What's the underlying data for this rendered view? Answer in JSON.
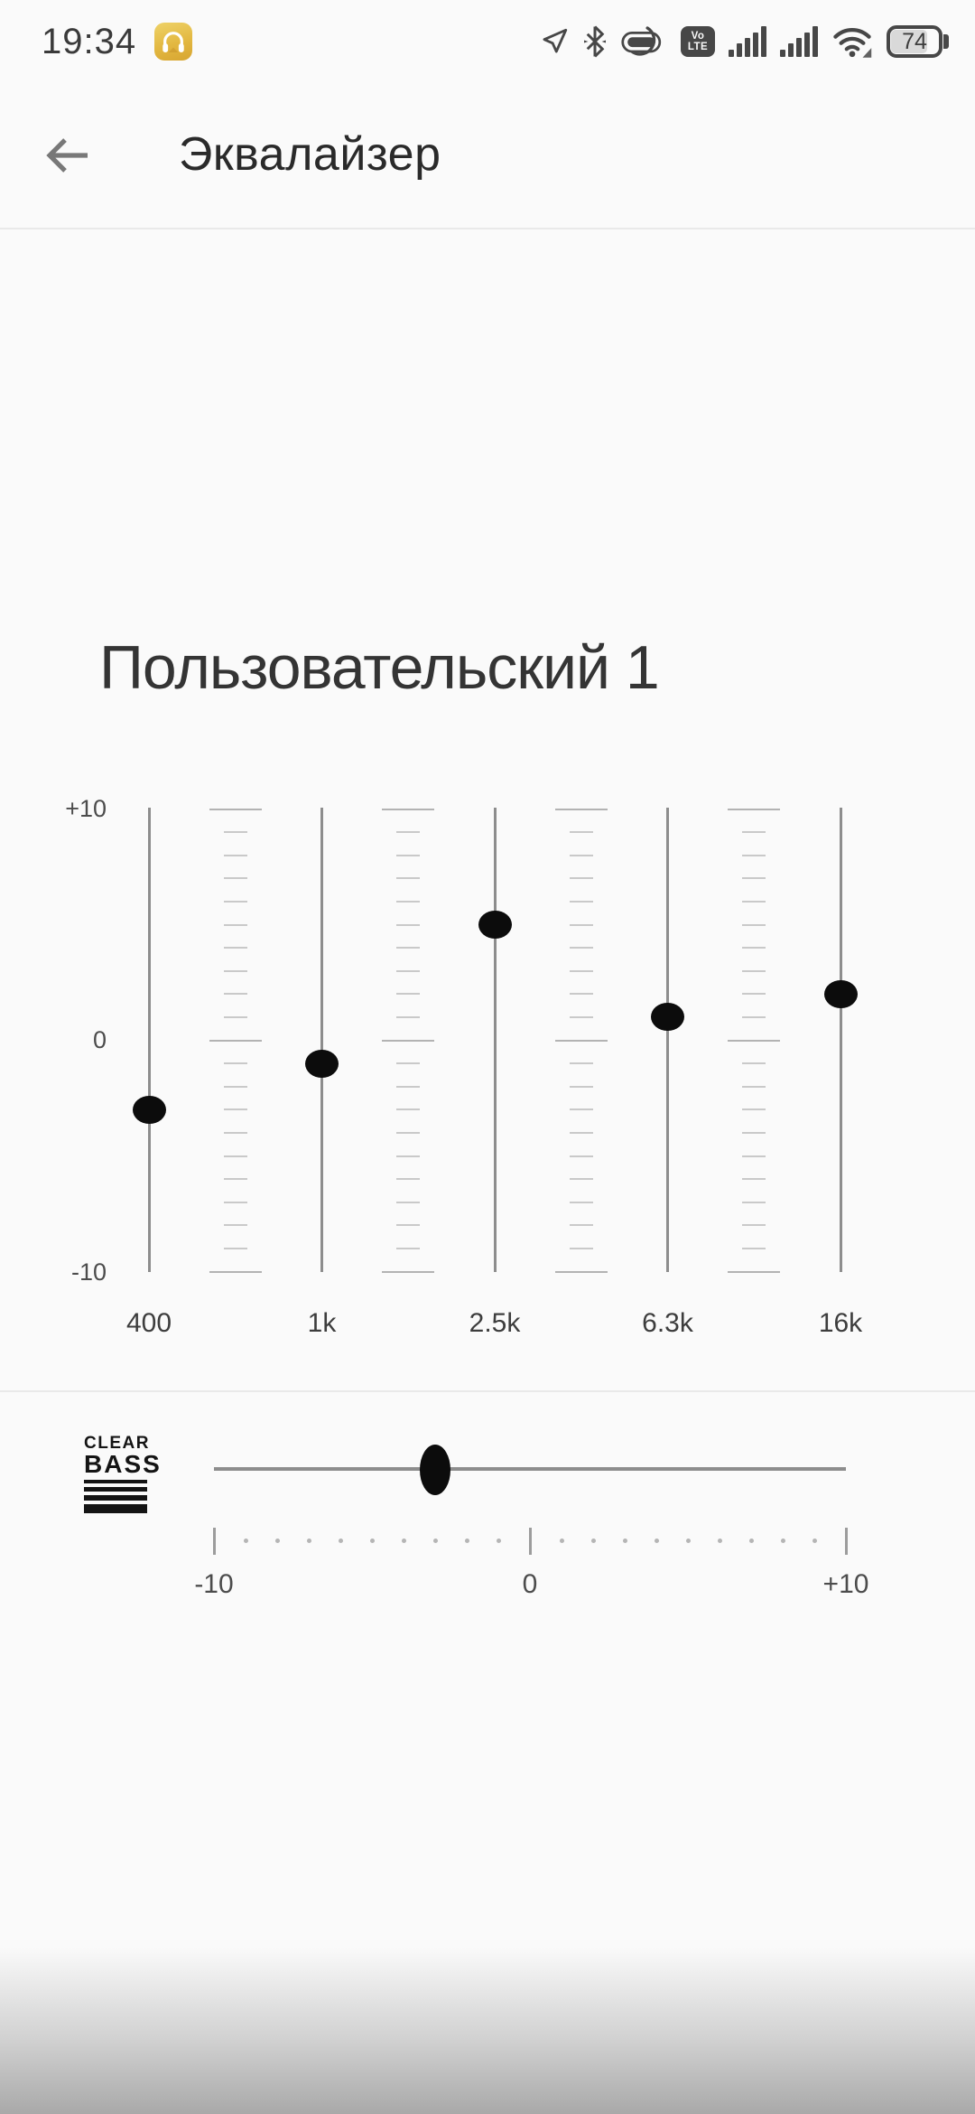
{
  "status_bar": {
    "time": "19:34",
    "volte": {
      "top": "Vo",
      "bottom": "LTE"
    },
    "battery_percent": "74"
  },
  "header": {
    "title": "Эквалайзер"
  },
  "equalizer": {
    "preset_name": "Пользовательский 1",
    "scale": {
      "top": "+10",
      "mid": "0",
      "bottom": "-10"
    },
    "range": {
      "min": -10,
      "max": 10
    },
    "bands": [
      {
        "label": "400",
        "value": -3
      },
      {
        "label": "1k",
        "value": -1
      },
      {
        "label": "2.5k",
        "value": 5
      },
      {
        "label": "6.3k",
        "value": 1
      },
      {
        "label": "16k",
        "value": 2
      }
    ]
  },
  "clear_bass": {
    "logo": {
      "line1": "CLEAR",
      "line2": "BASS"
    },
    "value": -3,
    "range": {
      "min": -10,
      "max": 10
    },
    "axis_labels": [
      "-10",
      "0",
      "+10"
    ]
  }
}
